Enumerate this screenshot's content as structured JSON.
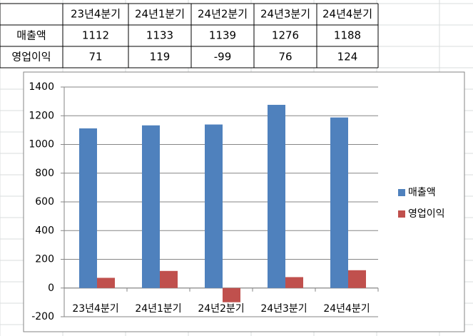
{
  "table": {
    "columns": [
      "23년4분기",
      "24년1분기",
      "24년2분기",
      "24년3분기",
      "24년4분기"
    ],
    "rows": [
      {
        "label": "매출액",
        "values": [
          "1112",
          "1133",
          "1139",
          "1276",
          "1188"
        ]
      },
      {
        "label": "영업이익",
        "values": [
          "71",
          "119",
          "-99",
          "76",
          "124"
        ]
      }
    ]
  },
  "chart_data": {
    "type": "bar",
    "categories": [
      "23년4분기",
      "24년1분기",
      "24년2분기",
      "24년3분기",
      "24년4분기"
    ],
    "series": [
      {
        "name": "매출액",
        "color": "#4f81bd",
        "values": [
          1112,
          1133,
          1139,
          1276,
          1188
        ]
      },
      {
        "name": "영업이익",
        "color": "#c0504d",
        "values": [
          71,
          119,
          -99,
          76,
          124
        ]
      }
    ],
    "ylim": [
      -200,
      1400
    ],
    "yticks": [
      -200,
      0,
      200,
      400,
      600,
      800,
      1000,
      1200,
      1400
    ],
    "grid": true,
    "legend": "right"
  }
}
